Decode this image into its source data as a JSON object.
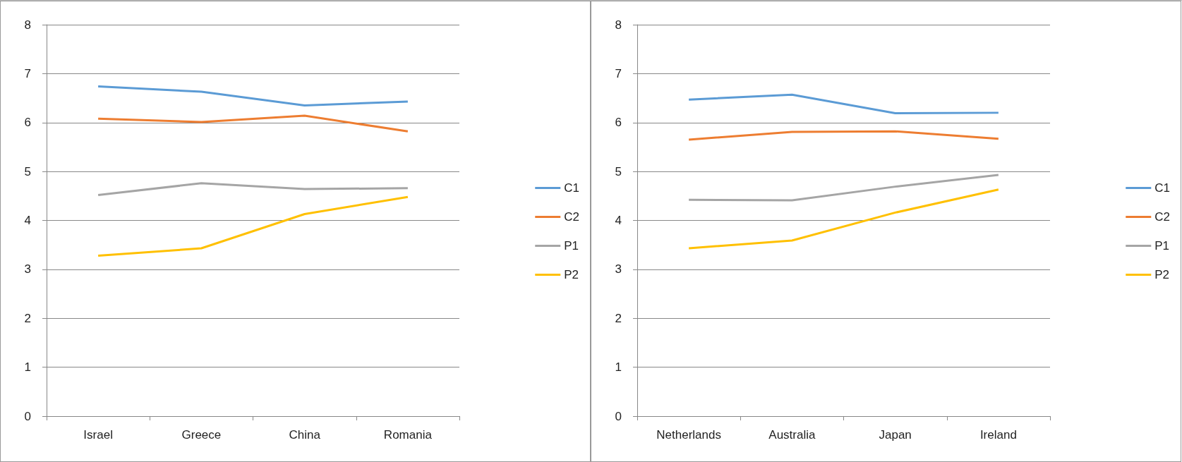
{
  "chart_data": [
    {
      "type": "line",
      "categories": [
        "Israel",
        "Greece",
        "China",
        "Romania"
      ],
      "ylim": [
        0,
        8
      ],
      "yticks": [
        0,
        1,
        2,
        3,
        4,
        5,
        6,
        7,
        8
      ],
      "grid": "y",
      "legend": "right",
      "marker": "none",
      "line_style": "solid",
      "series": [
        {
          "name": "C1",
          "color": "#5b9bd5",
          "values": [
            6.74,
            6.63,
            6.35,
            6.43
          ]
        },
        {
          "name": "C2",
          "color": "#ed7d31",
          "values": [
            6.08,
            6.01,
            6.14,
            5.82
          ]
        },
        {
          "name": "P1",
          "color": "#a5a5a5",
          "values": [
            4.52,
            4.76,
            4.64,
            4.66
          ]
        },
        {
          "name": "P2",
          "color": "#ffc000",
          "values": [
            3.28,
            3.43,
            4.13,
            4.48
          ]
        }
      ]
    },
    {
      "type": "line",
      "categories": [
        "Netherlands",
        "Australia",
        "Japan",
        "Ireland"
      ],
      "ylim": [
        0,
        8
      ],
      "yticks": [
        0,
        1,
        2,
        3,
        4,
        5,
        6,
        7,
        8
      ],
      "grid": "y",
      "legend": "right",
      "marker": "none",
      "line_style": "solid",
      "series": [
        {
          "name": "C1",
          "color": "#5b9bd5",
          "values": [
            6.47,
            6.57,
            6.19,
            6.2
          ]
        },
        {
          "name": "C2",
          "color": "#ed7d31",
          "values": [
            5.65,
            5.81,
            5.82,
            5.67
          ]
        },
        {
          "name": "P1",
          "color": "#a5a5a5",
          "values": [
            4.42,
            4.41,
            4.69,
            4.93
          ]
        },
        {
          "name": "P2",
          "color": "#ffc000",
          "values": [
            3.43,
            3.59,
            4.16,
            4.63
          ]
        }
      ]
    }
  ]
}
